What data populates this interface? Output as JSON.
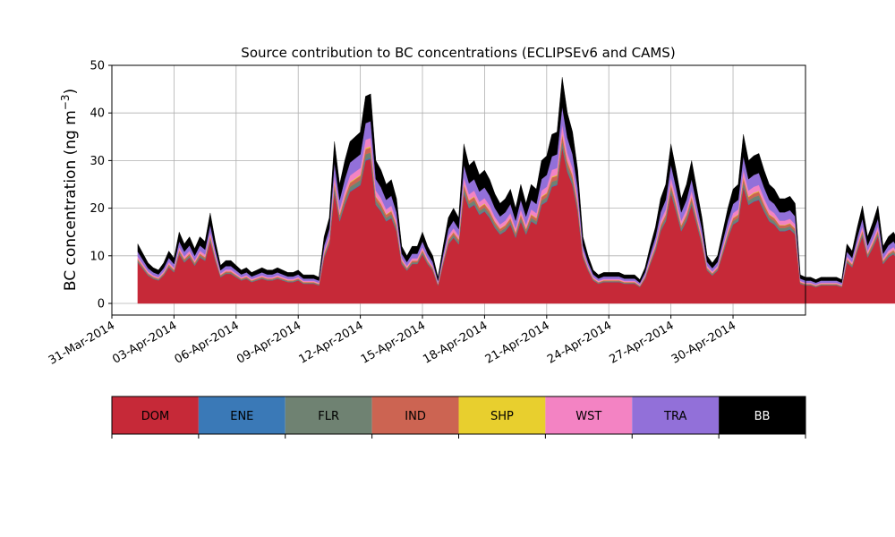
{
  "chart_data": {
    "type": "area",
    "stacked": true,
    "title": "Source contribution to BC concentrations (ECLIPSEv6 and CAMS)",
    "ylabel": "BC concentration (ng m",
    "ylabel_superscript": "−3",
    "ylabel_close": ")",
    "xlabel": "",
    "ylim": [
      0,
      50
    ],
    "yticks": [
      0,
      10,
      20,
      30,
      40,
      50
    ],
    "xlim": [
      "2014-03-31T00:00",
      "2014-05-03T12:00"
    ],
    "xticks": [
      "2014-03-31",
      "2014-04-03",
      "2014-04-06",
      "2014-04-09",
      "2014-04-12",
      "2014-04-15",
      "2014-04-18",
      "2014-04-21",
      "2014-04-24",
      "2014-04-27",
      "2014-04-30"
    ],
    "xtick_labels": [
      "31-Mar-2014",
      "03-Apr-2014",
      "06-Apr-2014",
      "09-Apr-2014",
      "12-Apr-2014",
      "15-Apr-2014",
      "18-Apr-2014",
      "21-Apr-2014",
      "24-Apr-2014",
      "27-Apr-2014",
      "30-Apr-2014"
    ],
    "grid": true,
    "legend_placement": "below-plot-colorbar",
    "x_start": "2014-04-01T06:00",
    "x_step_hours": 6,
    "total": [
      12.5,
      10.5,
      8.5,
      7.5,
      7,
      8.5,
      11,
      9.5,
      15,
      12.5,
      14,
      11.5,
      14,
      13,
      19,
      13,
      8,
      9,
      9,
      8,
      7,
      7.5,
      6.5,
      7,
      7.5,
      7,
      7,
      7.5,
      7,
      6.5,
      6.5,
      7,
      6,
      6,
      6,
      5.5,
      14,
      18,
      34,
      25,
      30,
      34,
      35,
      36,
      43.5,
      44,
      30,
      28,
      25,
      26,
      22,
      12,
      10,
      12,
      12,
      15,
      12,
      10,
      5.5,
      12,
      18,
      20,
      18,
      33.5,
      29,
      30,
      27,
      28,
      26,
      23,
      21,
      22,
      24,
      20,
      25,
      21,
      25,
      24,
      30,
      31,
      35.5,
      36,
      47.5,
      40,
      36,
      28,
      14,
      10,
      7,
      6,
      6.5,
      6.5,
      6.5,
      6.5,
      6,
      6,
      6,
      5,
      7.5,
      12,
      16,
      22,
      25,
      33.5,
      28,
      22,
      25,
      30,
      24,
      18,
      10,
      8.5,
      10,
      15,
      20,
      24,
      25,
      35.5,
      30,
      31,
      31.5,
      28,
      25,
      24,
      22,
      22,
      22.5,
      21,
      6,
      5.5,
      5.5,
      5,
      5.5,
      5.5,
      5.5,
      5.5,
      5,
      12.5,
      11,
      16,
      20.5,
      14,
      17,
      20.5,
      12,
      14,
      15,
      13,
      10,
      8,
      6,
      9,
      5,
      6,
      9,
      10,
      10,
      8.5,
      7,
      5,
      6,
      7,
      7,
      6,
      6.5,
      8,
      10,
      11,
      11,
      13,
      15,
      18,
      14,
      13,
      14,
      14,
      12,
      10,
      11,
      21,
      20.5,
      17,
      17.5,
      14,
      11,
      13,
      11,
      7,
      15,
      25,
      30,
      32,
      29,
      26,
      22,
      18,
      19,
      14,
      10,
      12,
      15,
      19,
      25,
      12,
      10,
      17.5,
      16
    ],
    "series": [
      {
        "name": "DOM",
        "color": "#c62938",
        "fraction": 0.69
      },
      {
        "name": "ENE",
        "color": "#3a79b7",
        "fraction": 0.005
      },
      {
        "name": "FLR",
        "color": "#6f8272",
        "fraction": 0.025
      },
      {
        "name": "IND",
        "color": "#cc6452",
        "fraction": 0.025
      },
      {
        "name": "SHP",
        "color": "#e8cf2e",
        "fraction": 0.005
      },
      {
        "name": "WST",
        "color": "#f383c3",
        "fraction": 0.04
      },
      {
        "name": "TRA",
        "color": "#9270d9",
        "fraction": 0.08
      },
      {
        "name": "BB",
        "color": "#000000",
        "fraction": 0.13
      }
    ],
    "legend": [
      {
        "label": "DOM",
        "color": "#c62938",
        "text_color": "#000000"
      },
      {
        "label": "ENE",
        "color": "#3a79b7",
        "text_color": "#000000"
      },
      {
        "label": "FLR",
        "color": "#6f8272",
        "text_color": "#000000"
      },
      {
        "label": "IND",
        "color": "#cc6452",
        "text_color": "#000000"
      },
      {
        "label": "SHP",
        "color": "#e8cf2e",
        "text_color": "#000000"
      },
      {
        "label": "WST",
        "color": "#f383c3",
        "text_color": "#000000"
      },
      {
        "label": "TRA",
        "color": "#9270d9",
        "text_color": "#000000"
      },
      {
        "label": "BB",
        "color": "#000000",
        "text_color": "#ffffff"
      }
    ]
  }
}
